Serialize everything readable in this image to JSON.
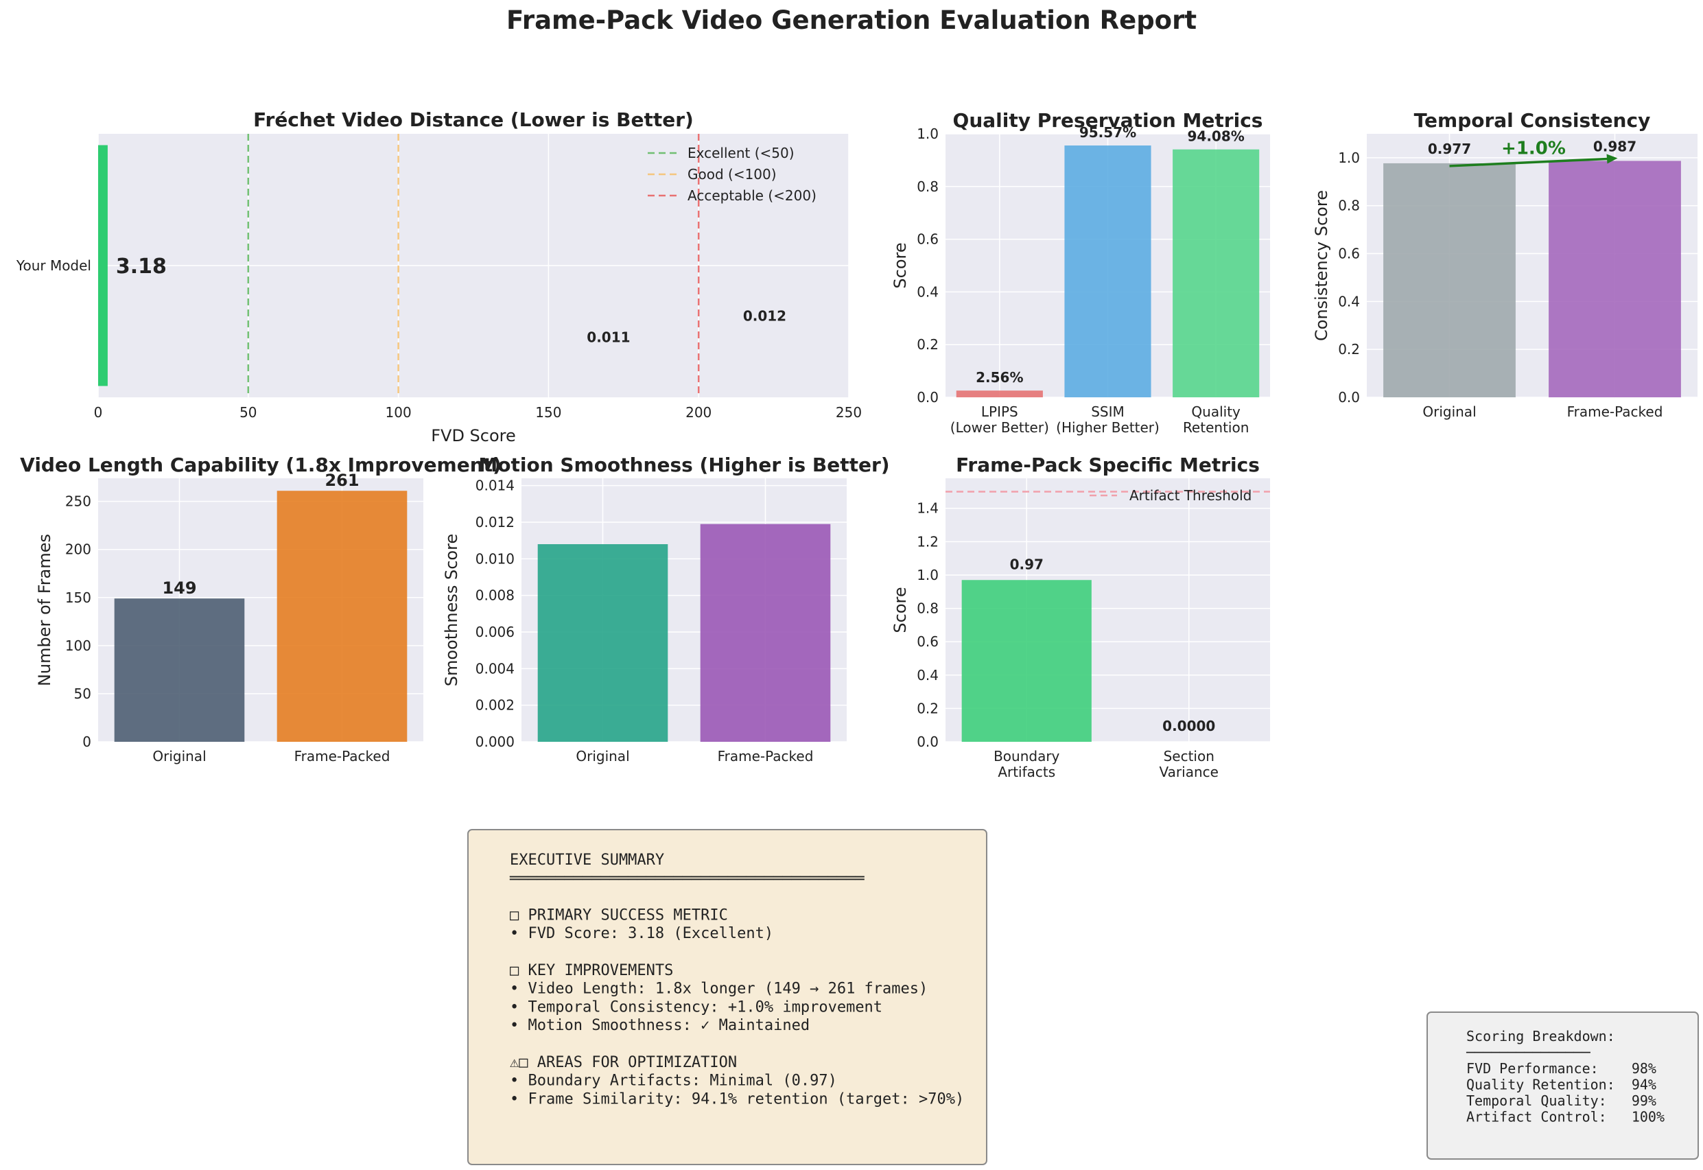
{
  "page": {
    "title": "Frame-Pack Video Generation Evaluation Report"
  },
  "colors": {
    "panel_bg": "#eaeaf2",
    "grid": "#ffffff",
    "text": "#222222",
    "fvd_bar": "#2ecc71",
    "excellent": "#5cb85c",
    "good": "#f7c06b",
    "acceptable": "#e85c5c",
    "lpips": "#e57373",
    "ssim": "#5dade2",
    "quality": "#58d68d",
    "original_gray": "#a0aaad",
    "frame_packed_purple": "#a569bd",
    "arrow_green": "#1e7e1e",
    "original_slate": "#4f5f73",
    "frame_packed_orange": "#e67e22",
    "smooth_teal": "#27a58a",
    "smooth_purple": "#9b59b6",
    "artifact_green": "#3fcf7c",
    "threshold_pink": "#f1a0ab",
    "summary_bg": "#f7ecd7",
    "summary_border": "#8a8a8a",
    "scoring_bg": "#f0f0f0",
    "scoring_border": "#8a8a8a"
  },
  "chart_data": [
    {
      "id": "fvd",
      "type": "bar",
      "orientation": "horizontal",
      "title": "Fréchet Video Distance (Lower is Better)",
      "xlabel": "FVD Score",
      "ylabel": "",
      "xlim": [
        0,
        250
      ],
      "xticks": [
        0,
        50,
        100,
        150,
        200,
        250
      ],
      "categories": [
        "Your Model"
      ],
      "values": [
        3.18
      ],
      "value_label": "3.18",
      "reference_lines": [
        {
          "name": "Excellent (<50)",
          "x": 50
        },
        {
          "name": "Good (<100)",
          "x": 100
        },
        {
          "name": "Acceptable (<200)",
          "x": 200
        }
      ],
      "annotations": [
        {
          "text": "0.011",
          "x": 170,
          "y": -0.29
        },
        {
          "text": "0.012",
          "x": 222,
          "y": -0.21
        }
      ],
      "grid": true,
      "legend": "top-right"
    },
    {
      "id": "quality",
      "type": "bar",
      "title": "Quality Preservation Metrics",
      "xlabel": "",
      "ylabel": "Score",
      "ylim": [
        0,
        1.0
      ],
      "yticks": [
        0.0,
        0.2,
        0.4,
        0.6,
        0.8,
        1.0
      ],
      "categories": [
        "LPIPS\n(Lower Better)",
        "SSIM\n(Higher Better)",
        "Quality\nRetention"
      ],
      "values": [
        0.0256,
        0.9557,
        0.9408
      ],
      "labels": [
        "2.56%",
        "95.57%",
        "94.08%"
      ],
      "grid": true
    },
    {
      "id": "temporal",
      "type": "bar",
      "title": "Temporal Consistency",
      "xlabel": "",
      "ylabel": "Consistency Score",
      "ylim": [
        0,
        1.1
      ],
      "yticks": [
        0.0,
        0.2,
        0.4,
        0.6,
        0.8,
        1.0
      ],
      "categories": [
        "Original",
        "Frame-Packed"
      ],
      "values": [
        0.977,
        0.987
      ],
      "labels": [
        "0.977",
        "0.987"
      ],
      "improvement_label": "+1.0%",
      "grid": true
    },
    {
      "id": "length",
      "type": "bar",
      "title": "Video Length Capability (1.8x Improvement)",
      "xlabel": "",
      "ylabel": "Number of Frames",
      "ylim": [
        0,
        274
      ],
      "yticks": [
        0,
        50,
        100,
        150,
        200,
        250
      ],
      "categories": [
        "Original",
        "Frame-Packed"
      ],
      "values": [
        149,
        261
      ],
      "labels": [
        "149",
        "261"
      ],
      "grid": true
    },
    {
      "id": "smooth",
      "type": "bar",
      "title": "Motion Smoothness (Higher is Better)",
      "xlabel": "",
      "ylabel": "Smoothness Score",
      "ylim": [
        0,
        0.0144
      ],
      "yticks": [
        0.0,
        0.002,
        0.004,
        0.006,
        0.008,
        0.01,
        0.012,
        0.014
      ],
      "categories": [
        "Original",
        "Frame-Packed"
      ],
      "values": [
        0.0108,
        0.0119
      ],
      "grid": true
    },
    {
      "id": "framepack",
      "type": "bar",
      "title": "Frame-Pack Specific Metrics",
      "xlabel": "",
      "ylabel": "Score",
      "ylim": [
        0,
        1.58
      ],
      "yticks": [
        0.0,
        0.2,
        0.4,
        0.6,
        0.8,
        1.0,
        1.2,
        1.4
      ],
      "categories": [
        "Boundary\nArtifacts",
        "Section\nVariance"
      ],
      "values": [
        0.97,
        0.0
      ],
      "labels": [
        "0.97",
        "0.0000"
      ],
      "reference_lines": [
        {
          "name": "Artifact Threshold",
          "y": 1.5
        }
      ],
      "grid": true,
      "legend": "top-right"
    }
  ],
  "summary": {
    "lines": [
      "EXECUTIVE SUMMARY",
      "═══════════════════════════════════════",
      "",
      "□ PRIMARY SUCCESS METRIC",
      "• FVD Score: 3.18 (Excellent)",
      "",
      "□ KEY IMPROVEMENTS",
      "• Video Length: 1.8x longer (149 → 261 frames)",
      "• Temporal Consistency: +1.0% improvement",
      "• Motion Smoothness: ✓ Maintained",
      "",
      "⚠□ AREAS FOR OPTIMIZATION",
      "• Boundary Artifacts: Minimal (0.97)",
      "• Frame Similarity: 94.1% retention (target: >70%)"
    ]
  },
  "scoring": {
    "lines": [
      "Scoring Breakdown:",
      "───────────────",
      "FVD Performance:    98%",
      "Quality Retention:  94%",
      "Temporal Quality:   99%",
      "Artifact Control:   100%"
    ]
  }
}
